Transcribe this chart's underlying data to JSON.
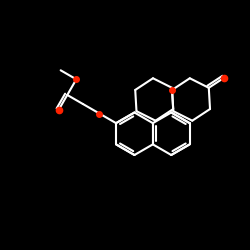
{
  "bg_color": "#000000",
  "bond_color": "#ffffff",
  "O_color": "#ff2200",
  "lw": 1.5,
  "figsize": [
    2.5,
    2.5
  ],
  "dpi": 100
}
